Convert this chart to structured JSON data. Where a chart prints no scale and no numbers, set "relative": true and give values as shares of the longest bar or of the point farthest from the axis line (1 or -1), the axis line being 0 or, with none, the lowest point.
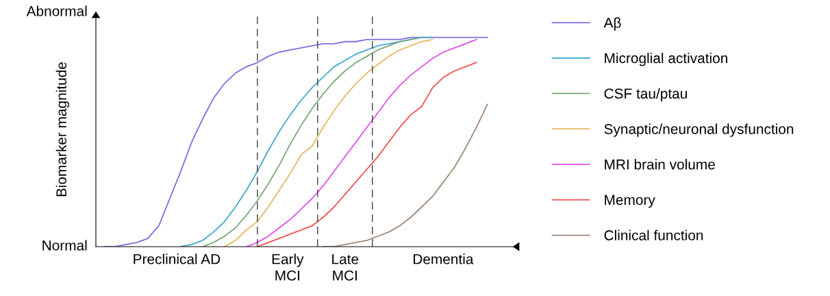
{
  "chart_data": {
    "type": "line",
    "relative": true,
    "ylabel": "Biomarker magnitude",
    "legend": "right",
    "line_style": "solid",
    "categories": [
      null,
      null,
      null,
      null,
      null,
      null,
      null,
      null,
      null,
      null,
      null,
      null,
      null,
      null,
      null,
      null,
      null,
      null,
      null,
      null,
      null,
      null,
      null,
      null,
      null,
      null,
      null,
      null,
      null,
      null,
      null,
      null,
      null,
      null,
      null,
      null,
      null
    ],
    "series": [
      {
        "name": "Aβ",
        "color": "#7b6fe0",
        "values": [
          null,
          0.0,
          0.0,
          0.01,
          0.02,
          0.04,
          0.1,
          0.23,
          0.36,
          0.5,
          0.61,
          0.71,
          0.78,
          0.83,
          0.86,
          0.88,
          0.91,
          0.93,
          0.94,
          0.95,
          0.96,
          0.97,
          0.97,
          0.98,
          0.98,
          0.99,
          0.99,
          0.99,
          0.99,
          1.0,
          1.0,
          1.0,
          1.0,
          1.0,
          1.0,
          1.0,
          1.0
        ]
      },
      {
        "name": "Microglial activation",
        "color": "#40a8d0",
        "values": [
          null,
          null,
          null,
          null,
          null,
          null,
          null,
          null,
          0.0,
          0.01,
          0.03,
          0.07,
          0.12,
          0.19,
          0.27,
          0.36,
          0.46,
          0.55,
          0.63,
          0.7,
          0.76,
          0.81,
          0.86,
          0.89,
          0.92,
          0.94,
          0.96,
          0.97,
          0.98,
          0.99,
          1.0,
          1.0,
          null,
          null,
          null,
          null,
          null
        ]
      },
      {
        "name": "CSF tau/ptau",
        "color": "#78a878",
        "values": [
          null,
          null,
          null,
          null,
          null,
          null,
          null,
          null,
          null,
          null,
          0.0,
          0.02,
          0.05,
          0.09,
          0.15,
          0.22,
          0.3,
          0.39,
          0.49,
          0.58,
          0.66,
          0.73,
          0.79,
          0.84,
          0.88,
          0.91,
          0.94,
          0.96,
          0.98,
          0.99,
          1.0,
          null,
          null,
          null,
          null,
          null,
          null
        ]
      },
      {
        "name": "Synaptic/neuronal dysfunction",
        "color": "#e8b860",
        "values": [
          null,
          null,
          null,
          null,
          null,
          null,
          null,
          null,
          null,
          null,
          null,
          null,
          0.0,
          0.03,
          0.08,
          0.12,
          0.19,
          0.27,
          0.35,
          0.44,
          0.48,
          0.57,
          0.65,
          0.72,
          0.78,
          0.83,
          0.87,
          0.91,
          0.94,
          0.96,
          0.98,
          0.99,
          null,
          null,
          null,
          null,
          null
        ]
      },
      {
        "name": "MRI brain volume",
        "color": "#e050e8",
        "values": [
          null,
          null,
          null,
          null,
          null,
          null,
          null,
          null,
          null,
          null,
          null,
          null,
          null,
          null,
          0.0,
          0.02,
          0.05,
          0.09,
          0.13,
          0.18,
          0.23,
          0.29,
          0.36,
          0.43,
          0.5,
          0.57,
          0.64,
          0.71,
          0.77,
          0.82,
          0.86,
          0.9,
          0.93,
          0.95,
          0.97,
          0.99,
          null
        ]
      },
      {
        "name": "Memory",
        "color": "#f05050",
        "values": [
          null,
          null,
          null,
          null,
          null,
          null,
          null,
          null,
          null,
          null,
          null,
          null,
          null,
          null,
          null,
          0.0,
          0.02,
          0.04,
          0.06,
          0.08,
          0.1,
          0.14,
          0.19,
          0.25,
          0.31,
          0.37,
          0.43,
          0.5,
          0.57,
          0.63,
          0.67,
          0.76,
          0.81,
          0.84,
          0.86,
          0.88,
          null
        ]
      },
      {
        "name": "Clinical function",
        "color": "#a08878",
        "values": [
          null,
          null,
          null,
          null,
          null,
          null,
          null,
          null,
          null,
          null,
          null,
          null,
          null,
          null,
          null,
          null,
          null,
          null,
          null,
          null,
          null,
          0.0,
          0.0,
          0.01,
          0.02,
          0.03,
          0.05,
          0.07,
          0.1,
          0.14,
          0.19,
          0.24,
          0.31,
          0.38,
          0.47,
          0.57,
          0.68
        ]
      }
    ],
    "annotations": [
      "Normal",
      "Abnormal",
      "Preclinical AD",
      "Early\nMCI",
      "Late\nMCI",
      "Dementia"
    ]
  }
}
